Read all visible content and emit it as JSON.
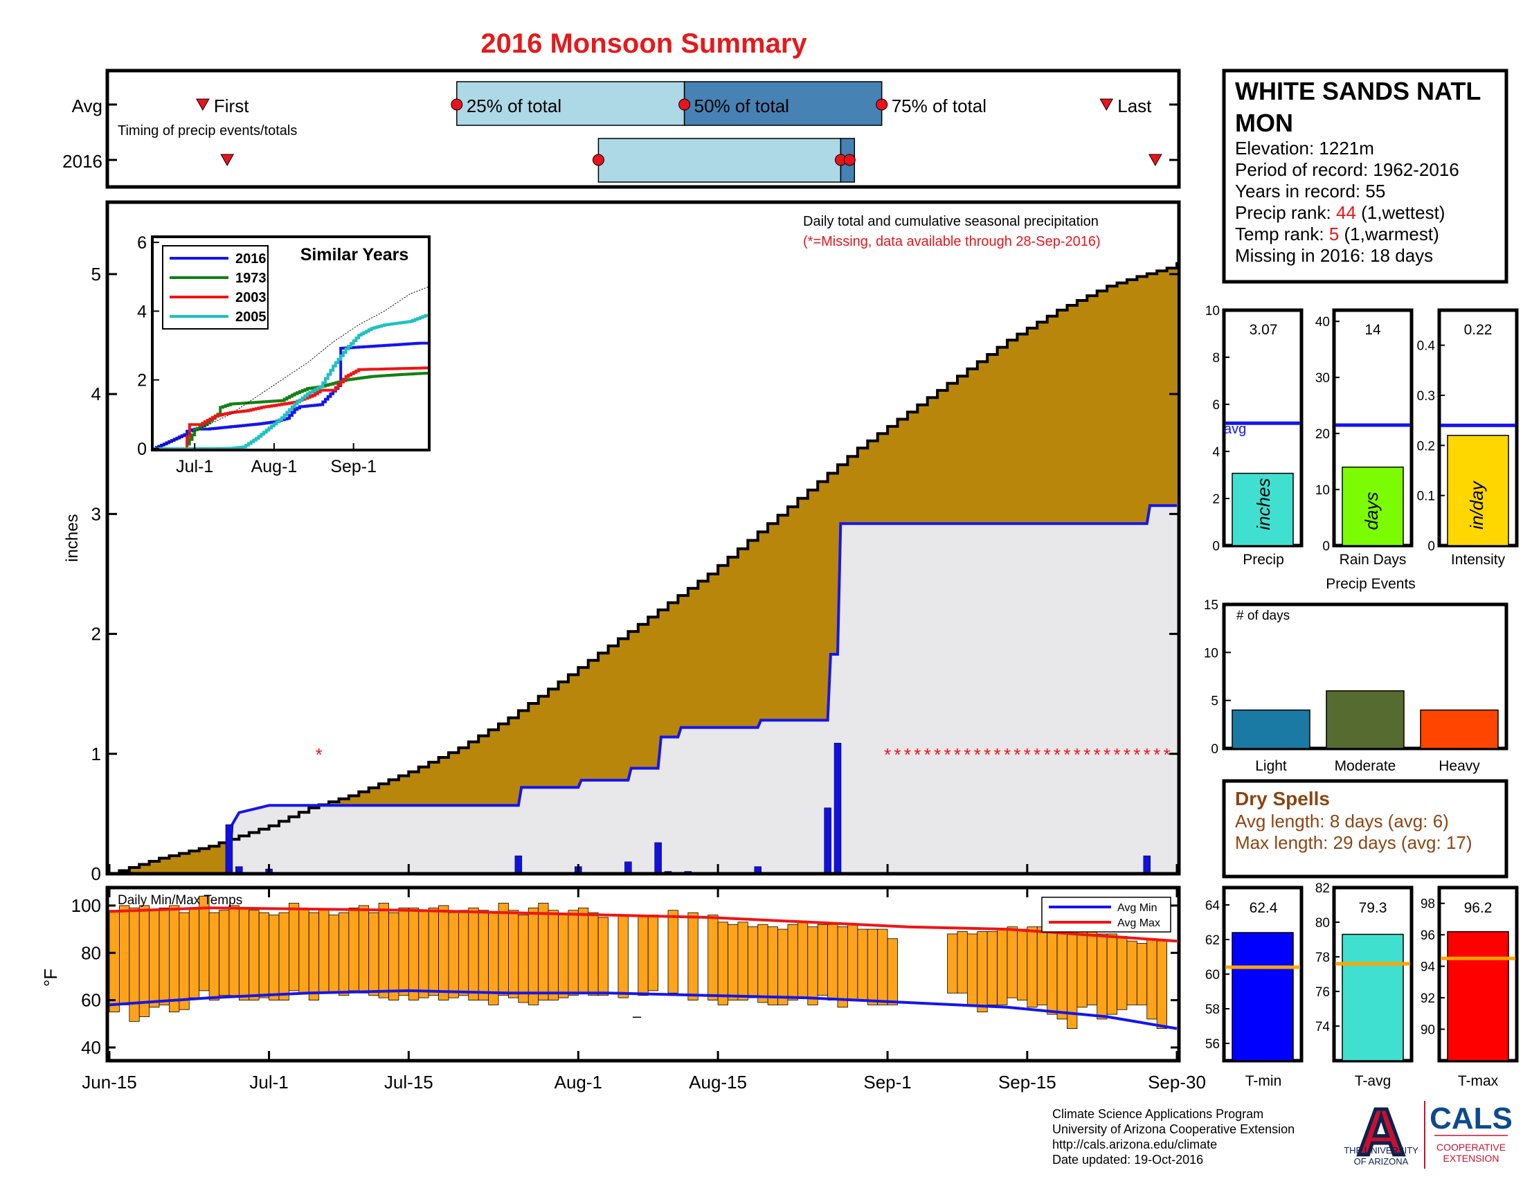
{
  "title": "2016 Monsoon Summary",
  "colors": {
    "title_red": "#e41a1c",
    "accent_red": "#e8141b",
    "seasonal_avg": "#b8860b",
    "seasonal_obs_fill": "#e8e8ea",
    "blue_line": "#1515ee",
    "daily_bar": "#1010e0",
    "q25": "#add8e6",
    "q50": "#4682b4",
    "temp_bar": "#ffa31a",
    "dry_spell_text": "#8b4513",
    "precip_bar": "#40e0d0",
    "raindays_bar": "#7cfc00",
    "intensity_bar": "#ffd700",
    "light": "#1a7aa3",
    "moderate": "#556b2f",
    "heavy": "#ff4500",
    "tmin_bar": "#0000ff",
    "tavg_bar": "#40e0d0",
    "tmax_bar": "#ff0000",
    "avg_line_orange": "#ffa500",
    "ua_blue": "#0c234b"
  },
  "timing": {
    "row_labels": [
      "Avg",
      "2016"
    ],
    "first_label": "First",
    "last_label": "Last",
    "q25_label": "25% of total",
    "q50_label": "50% of total",
    "q75_label": "75% of total",
    "caption": "Timing of precip events/totals"
  },
  "main": {
    "caption": "Daily total and cumulative seasonal precipitation",
    "missing_note": "(*=Missing, data available through 28-Sep-2016)",
    "ylabel": "inches",
    "y_ticks": [
      "0",
      "1",
      "2",
      "3",
      "4",
      "5"
    ],
    "x_ticks": [
      "Jun-15",
      "Jul-1",
      "Jul-15",
      "Aug-1",
      "Aug-15",
      "Sep-1",
      "Sep-15",
      "Sep-30"
    ],
    "missing_marker": "*"
  },
  "inset": {
    "title": "Similar Years",
    "y_ticks": [
      "0",
      "2",
      "4",
      "6"
    ],
    "x_ticks": [
      "Jul-1",
      "Aug-1",
      "Sep-1"
    ],
    "legend": [
      "2016",
      "1973",
      "2003",
      "2005"
    ],
    "legend_colors": [
      "#1515ee",
      "#138013",
      "#ee1515",
      "#20c0c0"
    ]
  },
  "temps": {
    "label": "Daily Min/Max Temps",
    "ylabel": "°F",
    "y_ticks": [
      "40",
      "60",
      "80",
      "100"
    ],
    "legend_min": "Avg Min",
    "legend_max": "Avg Max",
    "dash": "–"
  },
  "station": {
    "name_line1": "WHITE SANDS NATL",
    "name_line2": "MON",
    "elevation": "Elevation: 1221m",
    "period": "Period of record: 1962-2016",
    "years": "Years in record: 55",
    "precip_rank_label": "Precip rank: ",
    "precip_rank": "44",
    "precip_rank_note": " (1,wettest)",
    "temp_rank_label": "Temp rank: ",
    "temp_rank": "5",
    "temp_rank_note": " (1,warmest)",
    "missing": "Missing in 2016: 18 days"
  },
  "mini_precip": {
    "value_label": "3.07",
    "unit": "inches",
    "xlabel": "Precip",
    "y_ticks": [
      "0",
      "2",
      "4",
      "6",
      "8",
      "10"
    ],
    "avg_label": "avg"
  },
  "mini_raindays": {
    "value_label": "14",
    "unit": "days",
    "xlabel": "Rain Days",
    "y_ticks": [
      "0",
      "10",
      "20",
      "30",
      "40"
    ]
  },
  "mini_intensity": {
    "value_label": "0.22",
    "unit": "in/day",
    "xlabel": "Intensity",
    "y_ticks": [
      "0",
      "0.1",
      "0.2",
      "0.3",
      "0.4"
    ]
  },
  "events": {
    "title": "Precip Events",
    "inner_label": "# of days",
    "y_ticks": [
      "0",
      "5",
      "10",
      "15"
    ],
    "categories": [
      "Light",
      "Moderate",
      "Heavy"
    ]
  },
  "dry_spells": {
    "title": "Dry Spells",
    "avg_length": "Avg length: 8 days (avg: 6)",
    "max_length": "Max length: 29 days (avg: 17)"
  },
  "mini_tmin": {
    "value_label": "62.4",
    "xlabel": "T-min",
    "y_ticks": [
      "56",
      "58",
      "60",
      "62",
      "64"
    ]
  },
  "mini_tavg": {
    "value_label": "79.3",
    "xlabel": "T-avg",
    "y_ticks": [
      "74",
      "76",
      "78",
      "80",
      "82"
    ]
  },
  "mini_tmax": {
    "value_label": "96.2",
    "xlabel": "T-max",
    "y_ticks": [
      "90",
      "92",
      "94",
      "96",
      "98"
    ]
  },
  "footer": {
    "line1": "Climate Science Applications Program",
    "line2": "University of Arizona Cooperative Extension",
    "line3": "http://cals.arizona.edu/climate",
    "line4": " Date updated: 19-Oct-2016"
  },
  "logos": {
    "ua_letter": "A",
    "ua_line1": "THE UNIVERSITY",
    "ua_line2": "OF ARIZONA",
    "cals": "CALS",
    "cals_line1": "COOPERATIVE",
    "cals_line2": "EXTENSION"
  },
  "chart_data": [
    {
      "id": "timing",
      "type": "timeline",
      "x_domain_days_from_jun15": [
        0,
        107
      ],
      "avg": {
        "first": 8,
        "q25": 34,
        "q50": 57.3,
        "q75": 77.5,
        "last": 100.5
      },
      "y2016": {
        "first": 10.5,
        "q25": 48.5,
        "q50": 73.3,
        "q75": 74,
        "last": 105.5
      }
    },
    {
      "id": "main",
      "type": "area",
      "title": "Daily total and cumulative seasonal precipitation",
      "xlabel": "",
      "ylabel": "inches",
      "x_unit": "days since Jun-15",
      "xlim": [
        0,
        107
      ],
      "ylim": [
        0,
        5.6
      ],
      "series": [
        {
          "name": "Average cumulative",
          "x": [
            0,
            5,
            10,
            16,
            20,
            24,
            30,
            35,
            40,
            45,
            50,
            55,
            60,
            65,
            70,
            75,
            80,
            85,
            90,
            95,
            100,
            103,
            106,
            107
          ],
          "y": [
            0,
            0.13,
            0.23,
            0.4,
            0.55,
            0.65,
            0.85,
            1.05,
            1.3,
            1.6,
            1.9,
            2.2,
            2.5,
            2.85,
            3.2,
            3.55,
            3.85,
            4.15,
            4.45,
            4.7,
            4.9,
            4.98,
            5.05,
            5.1
          ]
        },
        {
          "name": "2016 cumulative",
          "x": [
            0,
            12,
            12.3,
            13,
            16,
            21,
            41,
            41.3,
            47,
            47.3,
            52,
            52.3,
            55,
            55.3,
            57,
            57.3,
            65,
            65.3,
            72,
            72.3,
            73,
            73.3,
            104,
            104.3,
            107
          ],
          "y": [
            0,
            0,
            0.41,
            0.51,
            0.57,
            0.57,
            0.57,
            0.72,
            0.72,
            0.78,
            0.78,
            0.88,
            0.88,
            1.14,
            1.14,
            1.22,
            1.22,
            1.28,
            1.28,
            1.83,
            1.83,
            2.92,
            2.92,
            3.07,
            3.07
          ]
        },
        {
          "name": "Daily precip (2016)",
          "x": [
            12,
            13,
            16,
            41,
            47,
            52,
            55,
            56,
            58,
            65,
            72,
            73,
            104
          ],
          "y": [
            0.41,
            0.06,
            0.04,
            0.15,
            0.06,
            0.1,
            0.26,
            0.02,
            0.02,
            0.06,
            0.55,
            1.09,
            0.15
          ]
        },
        {
          "name": "Missing days",
          "x": [
            21,
            78,
            79,
            80,
            81,
            82,
            83,
            84,
            85,
            86,
            87,
            88,
            89,
            90,
            91,
            92,
            93,
            94,
            95,
            96,
            97,
            98,
            99,
            100,
            101,
            102,
            103,
            104,
            105,
            106
          ],
          "y": 1
        }
      ]
    },
    {
      "id": "inset",
      "type": "line",
      "title": "Similar Years",
      "x_unit": "days since Jun-15",
      "xlim": [
        0,
        107
      ],
      "ylim": [
        0,
        6
      ],
      "series": [
        {
          "name": "2016",
          "x": [
            0,
            12,
            13,
            16,
            21,
            41,
            47,
            52,
            55,
            57,
            65,
            72,
            73,
            104,
            107
          ],
          "y": [
            0,
            0.41,
            0.51,
            0.57,
            0.57,
            0.72,
            0.78,
            0.88,
            1.14,
            1.22,
            1.28,
            1.83,
            2.92,
            3.07,
            3.07
          ]
        },
        {
          "name": "1973",
          "x": [
            0,
            12,
            15,
            16,
            20,
            25,
            26,
            30,
            50,
            55,
            60,
            65,
            75,
            85,
            95,
            107
          ],
          "y": [
            0,
            0,
            0.4,
            0.55,
            0.7,
            1.0,
            1.2,
            1.3,
            1.4,
            1.6,
            1.75,
            1.8,
            2.0,
            2.1,
            2.15,
            2.2
          ]
        },
        {
          "name": "2003",
          "x": [
            0,
            12,
            14,
            18,
            24,
            30,
            36,
            42,
            55,
            62,
            65,
            70,
            75,
            80,
            107
          ],
          "y": [
            0,
            0,
            0.7,
            0.7,
            0.95,
            1.05,
            1.1,
            1.2,
            1.35,
            1.55,
            1.7,
            1.7,
            2.1,
            2.3,
            2.35
          ]
        },
        {
          "name": "2005",
          "x": [
            0,
            12,
            30,
            35,
            40,
            45,
            50,
            55,
            60,
            65,
            70,
            75,
            80,
            85,
            90,
            95,
            100,
            107
          ],
          "y": [
            0,
            0,
            0.01,
            0.05,
            0.3,
            0.6,
            0.9,
            1.3,
            1.6,
            1.8,
            2.4,
            2.9,
            3.3,
            3.5,
            3.6,
            3.65,
            3.7,
            3.9
          ]
        },
        {
          "name": "Climatology",
          "x": [
            0,
            10,
            20,
            30,
            40,
            50,
            60,
            70,
            80,
            90,
            100,
            107
          ],
          "y": [
            0,
            0.3,
            0.65,
            1.0,
            1.5,
            2.0,
            2.5,
            3.1,
            3.6,
            4.0,
            4.5,
            4.7
          ]
        }
      ]
    },
    {
      "id": "temps",
      "type": "bar",
      "title": "Daily Min/Max Temps",
      "ylabel": "°F",
      "ylim": [
        35,
        107
      ],
      "x_unit": "days since Jun-15",
      "daily": [
        [
          0,
          55,
          98
        ],
        [
          1,
          58,
          100
        ],
        [
          2,
          51,
          99
        ],
        [
          3,
          53,
          100
        ],
        [
          4,
          57,
          98
        ],
        [
          5,
          58,
          99
        ],
        [
          6,
          55,
          100
        ],
        [
          7,
          56,
          97
        ],
        [
          8,
          61,
          99
        ],
        [
          9,
          64,
          104
        ],
        [
          10,
          60,
          97
        ],
        [
          11,
          62,
          98
        ],
        [
          12,
          62,
          100
        ],
        [
          13,
          60,
          99
        ],
        [
          14,
          60,
          98
        ],
        [
          15,
          61,
          97
        ],
        [
          16,
          60,
          96
        ],
        [
          17,
          60,
          97
        ],
        [
          18,
          64,
          101
        ],
        [
          19,
          63,
          99
        ],
        [
          20,
          60,
          97
        ],
        [
          21,
          63,
          98
        ],
        [
          22,
          63,
          96
        ],
        [
          23,
          62,
          97
        ],
        [
          24,
          64,
          99
        ],
        [
          25,
          63,
          100
        ],
        [
          26,
          62,
          97
        ],
        [
          27,
          61,
          101
        ],
        [
          28,
          60,
          97
        ],
        [
          29,
          62,
          99
        ],
        [
          30,
          60,
          99
        ],
        [
          31,
          61,
          98
        ],
        [
          32,
          62,
          99
        ],
        [
          33,
          60,
          100
        ],
        [
          34,
          61,
          97
        ],
        [
          35,
          62,
          98
        ],
        [
          36,
          60,
          99
        ],
        [
          37,
          60,
          98
        ],
        [
          38,
          58,
          97
        ],
        [
          39,
          62,
          101
        ],
        [
          40,
          61,
          98
        ],
        [
          41,
          59,
          96
        ],
        [
          42,
          58,
          99
        ],
        [
          43,
          60,
          101
        ],
        [
          44,
          60,
          98
        ],
        [
          45,
          61,
          96
        ],
        [
          46,
          62,
          98
        ],
        [
          47,
          63,
          99
        ],
        [
          48,
          62,
          97
        ],
        [
          49,
          62,
          95
        ],
        [
          51,
          61,
          96
        ],
        [
          53,
          62,
          96
        ],
        [
          54,
          64,
          96
        ],
        [
          56,
          63,
          98
        ],
        [
          58,
          60,
          97
        ],
        [
          60,
          60,
          96
        ],
        [
          61,
          58,
          93
        ],
        [
          62,
          60,
          92
        ],
        [
          63,
          60,
          93
        ],
        [
          64,
          61,
          91
        ],
        [
          65,
          59,
          92
        ],
        [
          66,
          58,
          91
        ],
        [
          67,
          58,
          90
        ],
        [
          68,
          60,
          92
        ],
        [
          69,
          61,
          93
        ],
        [
          70,
          58,
          91
        ],
        [
          71,
          62,
          92
        ],
        [
          72,
          60,
          92
        ],
        [
          73,
          57,
          91
        ],
        [
          74,
          60,
          92
        ],
        [
          75,
          60,
          90
        ],
        [
          76,
          58,
          90
        ],
        [
          77,
          58,
          90
        ],
        [
          78,
          58,
          86
        ],
        [
          84,
          63,
          88
        ],
        [
          85,
          63,
          89
        ],
        [
          86,
          58,
          88
        ],
        [
          87,
          55,
          89
        ],
        [
          88,
          58,
          89
        ],
        [
          89,
          58,
          90
        ],
        [
          90,
          61,
          91
        ],
        [
          91,
          60,
          90
        ],
        [
          92,
          57,
          91
        ],
        [
          93,
          58,
          91
        ],
        [
          94,
          54,
          90
        ],
        [
          95,
          52,
          92
        ],
        [
          96,
          48,
          90
        ],
        [
          97,
          57,
          89
        ],
        [
          98,
          58,
          90
        ],
        [
          99,
          52,
          88
        ],
        [
          100,
          54,
          88
        ],
        [
          101,
          56,
          87
        ],
        [
          102,
          58,
          85
        ],
        [
          103,
          58,
          84
        ],
        [
          104,
          52,
          86
        ],
        [
          105,
          48,
          85
        ]
      ],
      "series": [
        {
          "name": "Avg Min",
          "x": [
            0,
            10,
            20,
            30,
            40,
            50,
            60,
            70,
            80,
            90,
            100,
            107
          ],
          "y": [
            58,
            61,
            63,
            64,
            63,
            63,
            62,
            61,
            59,
            57,
            53,
            48
          ]
        },
        {
          "name": "Avg Max",
          "x": [
            0,
            10,
            20,
            30,
            40,
            50,
            60,
            70,
            80,
            90,
            100,
            107
          ],
          "y": [
            97.5,
            99,
            98.5,
            98,
            97,
            96,
            95,
            93,
            91,
            90,
            87,
            85
          ]
        }
      ]
    },
    {
      "id": "mini_precip",
      "type": "bar",
      "value": 3.07,
      "avg": 5.2,
      "ylim": [
        0,
        10
      ]
    },
    {
      "id": "mini_raindays",
      "type": "bar",
      "value": 14,
      "avg": 21.5,
      "ylim": [
        0,
        42
      ]
    },
    {
      "id": "mini_intensity",
      "type": "bar",
      "value": 0.22,
      "avg": 0.24,
      "ylim": [
        0,
        0.47
      ]
    },
    {
      "id": "events",
      "type": "bar",
      "title": "Precip Events",
      "categories": [
        "Light",
        "Moderate",
        "Heavy"
      ],
      "values": [
        4,
        6,
        4
      ],
      "ylim": [
        0,
        15
      ]
    },
    {
      "id": "mini_tmin",
      "type": "bar",
      "value": 62.4,
      "avg": 60.4,
      "ylim": [
        55,
        65
      ]
    },
    {
      "id": "mini_tavg",
      "type": "bar",
      "value": 79.3,
      "avg": 77.6,
      "ylim": [
        72,
        82
      ]
    },
    {
      "id": "mini_tmax",
      "type": "bar",
      "value": 96.2,
      "avg": 94.5,
      "ylim": [
        88,
        99
      ]
    }
  ]
}
